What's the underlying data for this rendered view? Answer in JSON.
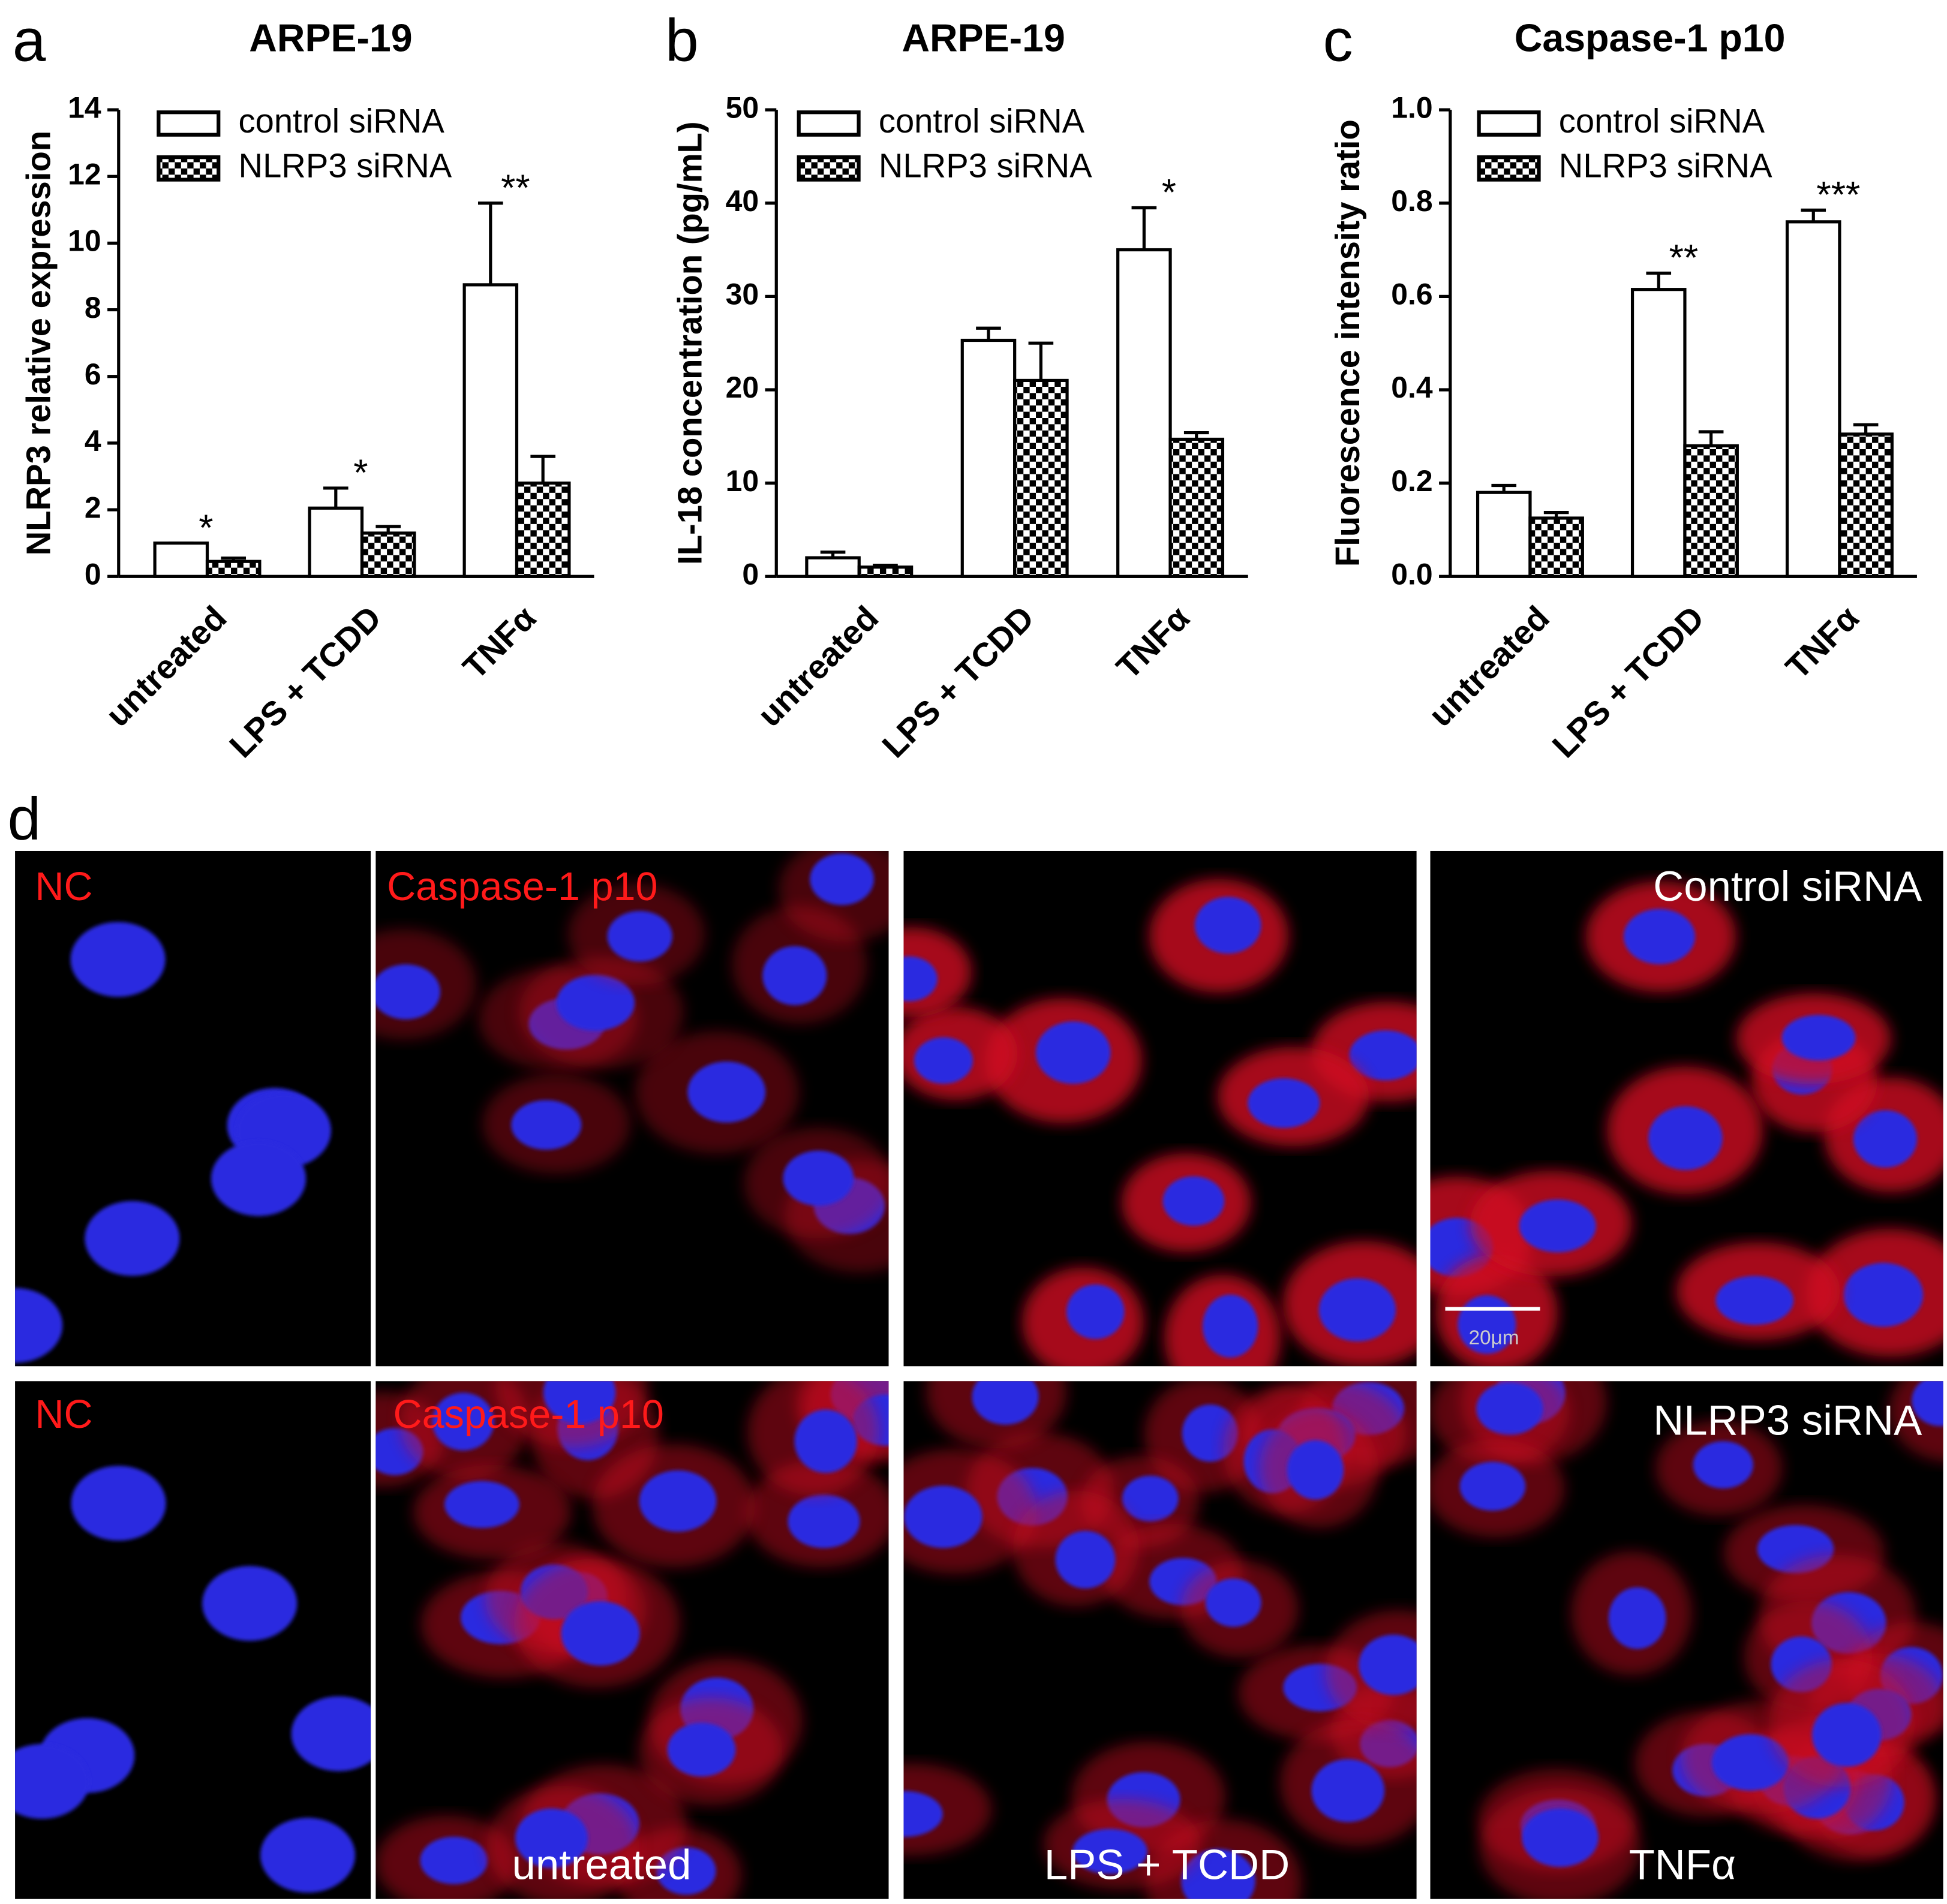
{
  "panel_labels": [
    "a",
    "b",
    "c",
    "d"
  ],
  "chart_data": [
    {
      "type": "bar",
      "title": "ARPE-19",
      "ylabel": "NLRP3 relative expression",
      "categories": [
        "untreated",
        "LPS + TCDD",
        "TNFα"
      ],
      "series": [
        {
          "name": "control siRNA",
          "color": "#ffffff",
          "values": [
            1.0,
            2.05,
            8.75
          ],
          "errors": [
            0,
            0.6,
            2.45
          ]
        },
        {
          "name": "NLRP3 siRNA",
          "color": "checker",
          "values": [
            0.45,
            1.3,
            2.8
          ],
          "errors": [
            0.1,
            0.2,
            0.8
          ]
        }
      ],
      "annotations": [
        "*",
        "*",
        "**"
      ],
      "ylim": [
        0,
        14
      ],
      "yticks": [
        0,
        2,
        4,
        6,
        8,
        10,
        12,
        14
      ]
    },
    {
      "type": "bar",
      "title": "ARPE-19",
      "ylabel": "IL-18 concentration (pg/mL)",
      "categories": [
        "untreated",
        "LPS + TCDD",
        "TNFα"
      ],
      "series": [
        {
          "name": "control siRNA",
          "color": "#ffffff",
          "values": [
            2.0,
            25.3,
            35.0
          ],
          "errors": [
            0.6,
            1.3,
            4.5
          ]
        },
        {
          "name": "NLRP3 siRNA",
          "color": "checker",
          "values": [
            1.0,
            21.0,
            14.7
          ],
          "errors": [
            0.2,
            4.0,
            0.7
          ]
        }
      ],
      "annotations": [
        null,
        null,
        "*"
      ],
      "ylim": [
        0,
        50
      ],
      "yticks": [
        0,
        10,
        20,
        30,
        40,
        50
      ]
    },
    {
      "type": "bar",
      "title": "Caspase-1 p10",
      "ylabel": "Fluorescence intensity ratio",
      "categories": [
        "untreated",
        "LPS + TCDD",
        "TNFα"
      ],
      "series": [
        {
          "name": "control siRNA",
          "color": "#ffffff",
          "values": [
            0.18,
            0.615,
            0.76
          ],
          "errors": [
            0.015,
            0.035,
            0.025
          ]
        },
        {
          "name": "NLRP3 siRNA",
          "color": "checker",
          "values": [
            0.125,
            0.28,
            0.305
          ],
          "errors": [
            0.012,
            0.03,
            0.02
          ]
        }
      ],
      "annotations": [
        null,
        "**",
        "***"
      ],
      "ylim": [
        0,
        1
      ],
      "yticks": [
        {
          "value": 0,
          "label": "0.0"
        },
        0.2,
        0.4,
        0.6,
        0.8,
        {
          "value": 1,
          "label": "1.0"
        }
      ]
    }
  ],
  "micrographs": {
    "stain_labels": [
      "NC",
      "Caspase-1 p10"
    ],
    "row_labels": [
      "Control siRNA",
      "NLRP3 siRNA"
    ],
    "column_labels": [
      "untreated",
      "LPS + TCDD",
      "TNFα"
    ],
    "scale_bar": "20μm"
  }
}
